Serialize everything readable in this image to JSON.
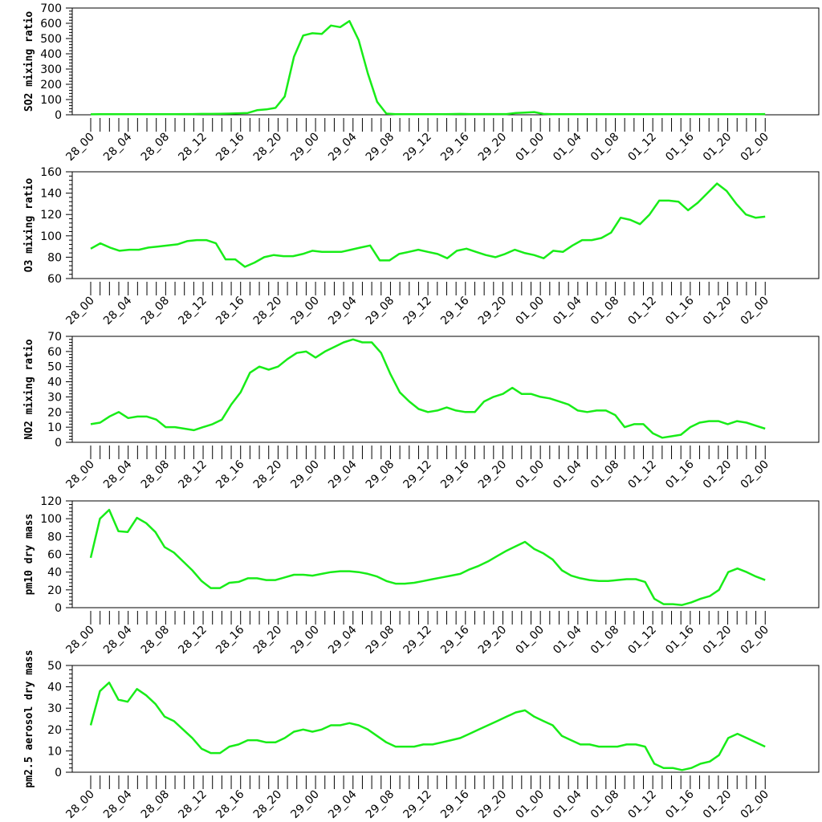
{
  "x_tick_labels": [
    "28_00",
    "28_04",
    "28_08",
    "28_12",
    "28_16",
    "28_20",
    "29_00",
    "29_04",
    "29_08",
    "29_12",
    "29_16",
    "29_20",
    "01_00",
    "01_04",
    "01_08",
    "01_12",
    "01_16",
    "01_20",
    "02_00"
  ],
  "line_color": "#18ec18",
  "chart_data": [
    {
      "type": "line",
      "ylabel": "SO2 mixing ratio",
      "ylim": [
        0,
        700
      ],
      "yticks": [
        0,
        100,
        200,
        300,
        400,
        500,
        600,
        700
      ],
      "series": [
        {
          "values": [
            3,
            4,
            4,
            4,
            4,
            4,
            4,
            4,
            4,
            4,
            5,
            5,
            6,
            6,
            7,
            8,
            10,
            12,
            30,
            35,
            45,
            120,
            380,
            520,
            535,
            530,
            585,
            575,
            615,
            490,
            270,
            85,
            8,
            4,
            4,
            4,
            4,
            4,
            4,
            5,
            6,
            5,
            5,
            5,
            5,
            5,
            12,
            15,
            18,
            6,
            4,
            4,
            4,
            4,
            4,
            4,
            4,
            4,
            4,
            4,
            4,
            4,
            4,
            4,
            4,
            4,
            4,
            4,
            4,
            4,
            4,
            4,
            4,
            5
          ]
        }
      ]
    },
    {
      "type": "line",
      "ylabel": "O3 mixing ratio",
      "ylim": [
        60,
        160
      ],
      "yticks": [
        60,
        80,
        100,
        120,
        140,
        160
      ],
      "series": [
        {
          "values": [
            88,
            93,
            89,
            86,
            87,
            87,
            89,
            90,
            91,
            92,
            95,
            96,
            96,
            93,
            78,
            78,
            71,
            75,
            80,
            82,
            81,
            81,
            83,
            86,
            85,
            85,
            85,
            87,
            89,
            91,
            77,
            77,
            83,
            85,
            87,
            85,
            83,
            79,
            86,
            88,
            85,
            82,
            80,
            83,
            87,
            84,
            82,
            79,
            86,
            85,
            91,
            96,
            96,
            98,
            103,
            117,
            115,
            111,
            120,
            133,
            133,
            132,
            124,
            131,
            140,
            149,
            142,
            130,
            120,
            117,
            118
          ]
        }
      ]
    },
    {
      "type": "line",
      "ylabel": "NO2 mixing ratio",
      "ylim": [
        0,
        70
      ],
      "yticks": [
        0,
        10,
        20,
        30,
        40,
        50,
        60,
        70
      ],
      "series": [
        {
          "values": [
            12,
            13,
            17,
            20,
            16,
            17,
            17,
            15,
            10,
            10,
            9,
            8,
            10,
            12,
            15,
            25,
            33,
            46,
            50,
            48,
            50,
            55,
            59,
            60,
            56,
            60,
            63,
            66,
            68,
            66,
            66,
            59,
            45,
            33,
            27,
            22,
            20,
            21,
            23,
            21,
            20,
            20,
            27,
            30,
            32,
            36,
            32,
            32,
            30,
            29,
            27,
            25,
            21,
            20,
            21,
            21,
            18,
            10,
            12,
            12,
            6,
            3,
            4,
            5,
            10,
            13,
            14,
            14,
            12,
            14,
            13,
            11,
            9
          ]
        }
      ]
    },
    {
      "type": "line",
      "ylabel": "pm10 dry mass",
      "ylim": [
        0,
        120
      ],
      "yticks": [
        0,
        20,
        40,
        60,
        80,
        100,
        120
      ],
      "series": [
        {
          "values": [
            56,
            100,
            110,
            86,
            85,
            101,
            95,
            85,
            68,
            62,
            52,
            42,
            30,
            22,
            22,
            28,
            29,
            33,
            33,
            31,
            31,
            34,
            37,
            37,
            36,
            38,
            40,
            41,
            41,
            40,
            38,
            35,
            30,
            27,
            27,
            28,
            30,
            32,
            34,
            36,
            38,
            43,
            47,
            52,
            58,
            64,
            69,
            74,
            66,
            61,
            54,
            42,
            36,
            33,
            31,
            30,
            30,
            31,
            32,
            32,
            29,
            10,
            4,
            4,
            3,
            6,
            10,
            13,
            20,
            40,
            44,
            40,
            35,
            31
          ]
        }
      ]
    },
    {
      "type": "line",
      "ylabel": "pm2.5 aerosol dry mass",
      "ylim": [
        0,
        50
      ],
      "yticks": [
        0,
        10,
        20,
        30,
        40,
        50
      ],
      "series": [
        {
          "values": [
            22,
            38,
            42,
            34,
            33,
            39,
            36,
            32,
            26,
            24,
            20,
            16,
            11,
            9,
            9,
            12,
            13,
            15,
            15,
            14,
            14,
            16,
            19,
            20,
            19,
            20,
            22,
            22,
            23,
            22,
            20,
            17,
            14,
            12,
            12,
            12,
            13,
            13,
            14,
            15,
            16,
            18,
            20,
            22,
            24,
            26,
            28,
            29,
            26,
            24,
            22,
            17,
            15,
            13,
            13,
            12,
            12,
            12,
            13,
            13,
            12,
            4,
            2,
            2,
            1,
            2,
            4,
            5,
            8,
            16,
            18,
            16,
            14,
            12
          ]
        }
      ]
    }
  ]
}
